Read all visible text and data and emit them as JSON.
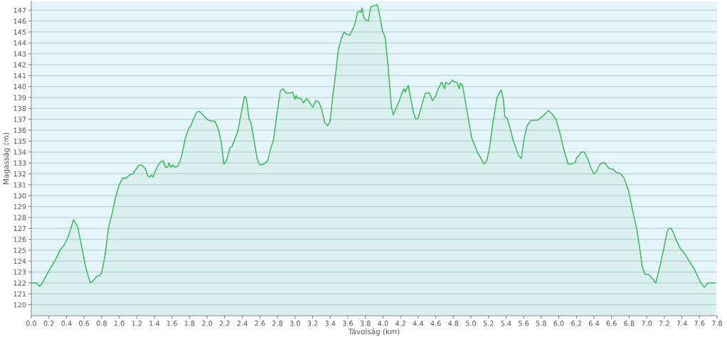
{
  "chart_data": {
    "type": "area",
    "xlabel": "Távolság (km)",
    "ylabel": "Magasság (m)",
    "x": [
      0,
      0.056,
      0.093,
      0.126,
      0.185,
      0.229,
      0.28,
      0.332,
      0.37,
      0.422,
      0.48,
      0.503,
      0.532,
      0.571,
      0.622,
      0.671,
      0.704,
      0.742,
      0.781,
      0.802,
      0.838,
      0.879,
      0.923,
      0.956,
      1.0,
      1.039,
      1.077,
      1.116,
      1.154,
      1.224,
      1.257,
      1.295,
      1.326,
      1.352,
      1.367,
      1.386,
      1.411,
      1.444,
      1.47,
      1.501,
      1.527,
      1.552,
      1.565,
      1.591,
      1.609,
      1.635,
      1.668,
      1.706,
      1.753,
      1.791,
      1.814,
      1.853,
      1.887,
      1.918,
      1.964,
      2.015,
      2.092,
      2.13,
      2.161,
      2.19,
      2.221,
      2.259,
      2.284,
      2.311,
      2.349,
      2.388,
      2.426,
      2.446,
      2.477,
      2.498,
      2.529,
      2.568,
      2.601,
      2.645,
      2.689,
      2.722,
      2.755,
      2.786,
      2.832,
      2.863,
      2.901,
      2.94,
      2.974,
      2.997,
      3.012,
      3.03,
      3.069,
      3.094,
      3.133,
      3.167,
      3.202,
      3.236,
      3.269,
      3.3,
      3.338,
      3.372,
      3.398,
      3.429,
      3.459,
      3.493,
      3.531,
      3.557,
      3.583,
      3.621,
      3.66,
      3.685,
      3.711,
      3.737,
      3.749,
      3.762,
      3.783,
      3.806,
      3.834,
      3.86,
      3.896,
      3.93,
      3.942,
      3.973,
      3.994,
      4.025,
      4.058,
      4.096,
      4.117,
      4.148,
      4.187,
      4.22,
      4.238,
      4.251,
      4.289,
      4.315,
      4.348,
      4.374,
      4.4,
      4.431,
      4.482,
      4.528,
      4.564,
      4.598,
      4.624,
      4.667,
      4.701,
      4.713,
      4.752,
      4.79,
      4.811,
      4.842,
      4.867,
      4.88,
      4.906,
      4.944,
      5.009,
      5.073,
      5.15,
      5.181,
      5.214,
      5.253,
      5.297,
      5.343,
      5.369,
      5.387,
      5.413,
      5.446,
      5.48,
      5.515,
      5.541,
      5.574,
      5.6,
      5.638,
      5.685,
      5.754,
      5.819,
      5.883,
      5.921,
      5.968,
      6.011,
      6.055,
      6.106,
      6.14,
      6.166,
      6.184,
      6.204,
      6.224,
      6.255,
      6.289,
      6.328,
      6.363,
      6.397,
      6.428,
      6.461,
      6.492,
      6.525,
      6.569,
      6.621,
      6.654,
      6.68,
      6.705,
      6.744,
      6.795,
      6.841,
      6.885,
      6.924,
      6.949,
      6.98,
      7.021,
      7.065,
      7.103,
      7.15,
      7.193,
      7.232,
      7.253,
      7.279,
      7.309,
      7.348,
      7.386,
      7.433,
      7.476,
      7.54,
      7.579,
      7.618,
      7.656,
      7.695,
      7.777
    ],
    "series": [
      {
        "color": "#3dba5c",
        "values": [
          122.0,
          122.0,
          121.7,
          122.0,
          122.9,
          123.5,
          124.2,
          125.1,
          125.4,
          126.3,
          127.8,
          127.5,
          127.0,
          125.4,
          123.3,
          122.0,
          122.2,
          122.6,
          122.7,
          123.0,
          124.5,
          127.1,
          128.5,
          129.8,
          131.0,
          131.6,
          131.6,
          131.9,
          132.0,
          132.8,
          132.8,
          132.5,
          131.8,
          131.7,
          131.9,
          131.7,
          132.3,
          132.8,
          133.1,
          133.2,
          132.6,
          132.6,
          133.0,
          132.6,
          132.8,
          132.6,
          132.7,
          133.5,
          135.3,
          136.2,
          136.4,
          137.2,
          137.7,
          137.7,
          137.3,
          136.9,
          136.8,
          136.0,
          134.9,
          132.9,
          133.2,
          134.4,
          134.5,
          135.1,
          135.9,
          137.6,
          139.1,
          138.9,
          137.0,
          136.7,
          135.3,
          133.4,
          132.8,
          132.9,
          133.2,
          134.3,
          135.1,
          137.0,
          139.6,
          139.8,
          139.4,
          139.4,
          139.5,
          138.8,
          139.2,
          138.9,
          138.9,
          138.5,
          138.9,
          138.5,
          138.1,
          138.7,
          138.6,
          138.0,
          136.7,
          136.4,
          136.8,
          139.1,
          141.0,
          143.4,
          144.5,
          145.0,
          144.8,
          144.7,
          145.3,
          145.9,
          146.8,
          146.9,
          146.8,
          147.2,
          146.3,
          146.1,
          146.0,
          147.3,
          147.4,
          147.5,
          147.3,
          146.1,
          145.1,
          144.5,
          141.9,
          138.1,
          137.4,
          138.0,
          138.7,
          139.5,
          139.8,
          139.5,
          140.1,
          138.9,
          137.6,
          137.0,
          137.1,
          138.0,
          139.4,
          139.4,
          138.7,
          139.1,
          139.7,
          140.4,
          139.8,
          140.4,
          140.2,
          140.6,
          140.4,
          140.4,
          139.8,
          140.3,
          140.1,
          138.3,
          135.3,
          134.0,
          132.9,
          133.2,
          134.5,
          136.8,
          139.0,
          139.7,
          138.9,
          137.2,
          137.1,
          136.2,
          135.1,
          134.3,
          133.7,
          133.4,
          135.0,
          136.4,
          136.9,
          136.9,
          137.3,
          137.8,
          137.5,
          137.0,
          135.8,
          134.3,
          132.9,
          132.9,
          133.0,
          133.0,
          133.5,
          133.6,
          134.0,
          134.0,
          133.4,
          132.6,
          132.0,
          132.2,
          132.8,
          133.0,
          133.0,
          132.5,
          132.4,
          132.1,
          132.1,
          132.0,
          131.6,
          130.4,
          128.6,
          127.0,
          125.0,
          123.5,
          122.8,
          122.8,
          122.4,
          122.0,
          123.5,
          125.1,
          126.7,
          127.0,
          127.0,
          126.5,
          125.7,
          125.1,
          124.7,
          124.1,
          123.3,
          122.6,
          122.0,
          121.6,
          122.0,
          122.0
        ]
      }
    ],
    "xlim": [
      0,
      7.8
    ],
    "ylim": [
      119,
      147.8
    ],
    "xticks": [
      {
        "value": 0,
        "label": "0.0"
      },
      0.2,
      0.4,
      0.6,
      0.8,
      {
        "value": 1,
        "label": "1.0"
      },
      1.2,
      1.4,
      1.6,
      1.8,
      {
        "value": 2,
        "label": "2.0"
      },
      2.2,
      2.4,
      2.6,
      2.8,
      {
        "value": 3,
        "label": "3.0"
      },
      3.2,
      3.4,
      3.6,
      3.8,
      {
        "value": 4,
        "label": "4.0"
      },
      4.2,
      4.4,
      4.6,
      4.8,
      {
        "value": 5,
        "label": "5.0"
      },
      5.2,
      5.4,
      5.6,
      5.8,
      {
        "value": 6,
        "label": "6.0"
      },
      6.2,
      6.4,
      6.6,
      6.8,
      {
        "value": 7,
        "label": "7.0"
      },
      7.2,
      7.4,
      7.6,
      7.8
    ],
    "yticks": [
      120,
      121,
      122,
      123,
      124,
      125,
      126,
      127,
      128,
      129,
      130,
      131,
      132,
      133,
      134,
      135,
      136,
      137,
      138,
      139,
      140,
      141,
      142,
      143,
      144,
      145,
      146,
      147
    ],
    "grid": "y"
  }
}
